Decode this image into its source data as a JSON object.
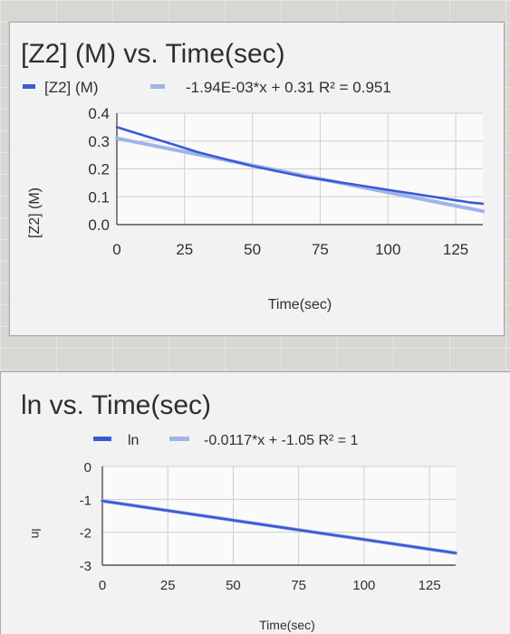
{
  "charts": [
    {
      "title": "[Z2] (M) vs. Time(sec)",
      "legend_series": "[Z2] (M)",
      "legend_trend": "-1.94E-03*x + 0.31 R² = 0.951",
      "xlabel": "Time(sec)",
      "ylabel": "[Z2] (M)",
      "x_ticks": [
        "0",
        "25",
        "50",
        "75",
        "100",
        "125"
      ],
      "y_ticks": [
        "0.0",
        "0.1",
        "0.2",
        "0.3",
        "0.4"
      ]
    },
    {
      "title": "ln  vs. Time(sec)",
      "legend_series": "ln",
      "legend_trend": "-0.0117*x + -1.05 R² = 1",
      "xlabel": "Time(sec)",
      "ylabel": "ln",
      "x_ticks": [
        "0",
        "25",
        "50",
        "75",
        "100",
        "125"
      ],
      "y_ticks": [
        "0",
        "-1",
        "-2",
        "-3"
      ]
    }
  ],
  "chart_data": [
    {
      "type": "line",
      "title": "[Z2] (M) vs. Time(sec)",
      "xlabel": "Time(sec)",
      "ylabel": "[Z2] (M)",
      "xlim": [
        0,
        135
      ],
      "ylim": [
        0,
        0.4
      ],
      "x_ticks": [
        0,
        25,
        50,
        75,
        100,
        125
      ],
      "y_ticks": [
        0.0,
        0.1,
        0.2,
        0.3,
        0.4
      ],
      "grid": true,
      "legend": "top",
      "colors": {
        "series": "#3b5bd6",
        "trend": "#9fb4e8"
      },
      "series": [
        {
          "name": "[Z2] (M)",
          "x": [
            0,
            10,
            20,
            30,
            40,
            50,
            60,
            70,
            80,
            90,
            100,
            110,
            120,
            130,
            135
          ],
          "y": [
            0.35,
            0.32,
            0.29,
            0.26,
            0.235,
            0.21,
            0.19,
            0.17,
            0.155,
            0.14,
            0.125,
            0.11,
            0.095,
            0.08,
            0.075
          ]
        },
        {
          "name": "-1.94E-03*x + 0.31 R² = 0.951",
          "trendline": true,
          "slope": -0.00194,
          "intercept": 0.31,
          "r2": 0.951,
          "x": [
            0,
            135
          ],
          "y": [
            0.31,
            0.048
          ]
        }
      ]
    },
    {
      "type": "line",
      "title": "ln  vs. Time(sec)",
      "xlabel": "Time(sec)",
      "ylabel": "ln",
      "xlim": [
        0,
        135
      ],
      "ylim": [
        -3,
        0
      ],
      "x_ticks": [
        0,
        25,
        50,
        75,
        100,
        125
      ],
      "y_ticks": [
        0,
        -1,
        -2,
        -3
      ],
      "grid": true,
      "legend": "top",
      "colors": {
        "series": "#3b5bd6",
        "trend": "#9fb4e8"
      },
      "series": [
        {
          "name": "ln",
          "x": [
            0,
            135
          ],
          "y": [
            -1.05,
            -2.63
          ]
        },
        {
          "name": "-0.0117*x + -1.05 R² = 1",
          "trendline": true,
          "slope": -0.0117,
          "intercept": -1.05,
          "r2": 1,
          "x": [
            0,
            135
          ],
          "y": [
            -1.05,
            -2.63
          ]
        }
      ]
    }
  ]
}
